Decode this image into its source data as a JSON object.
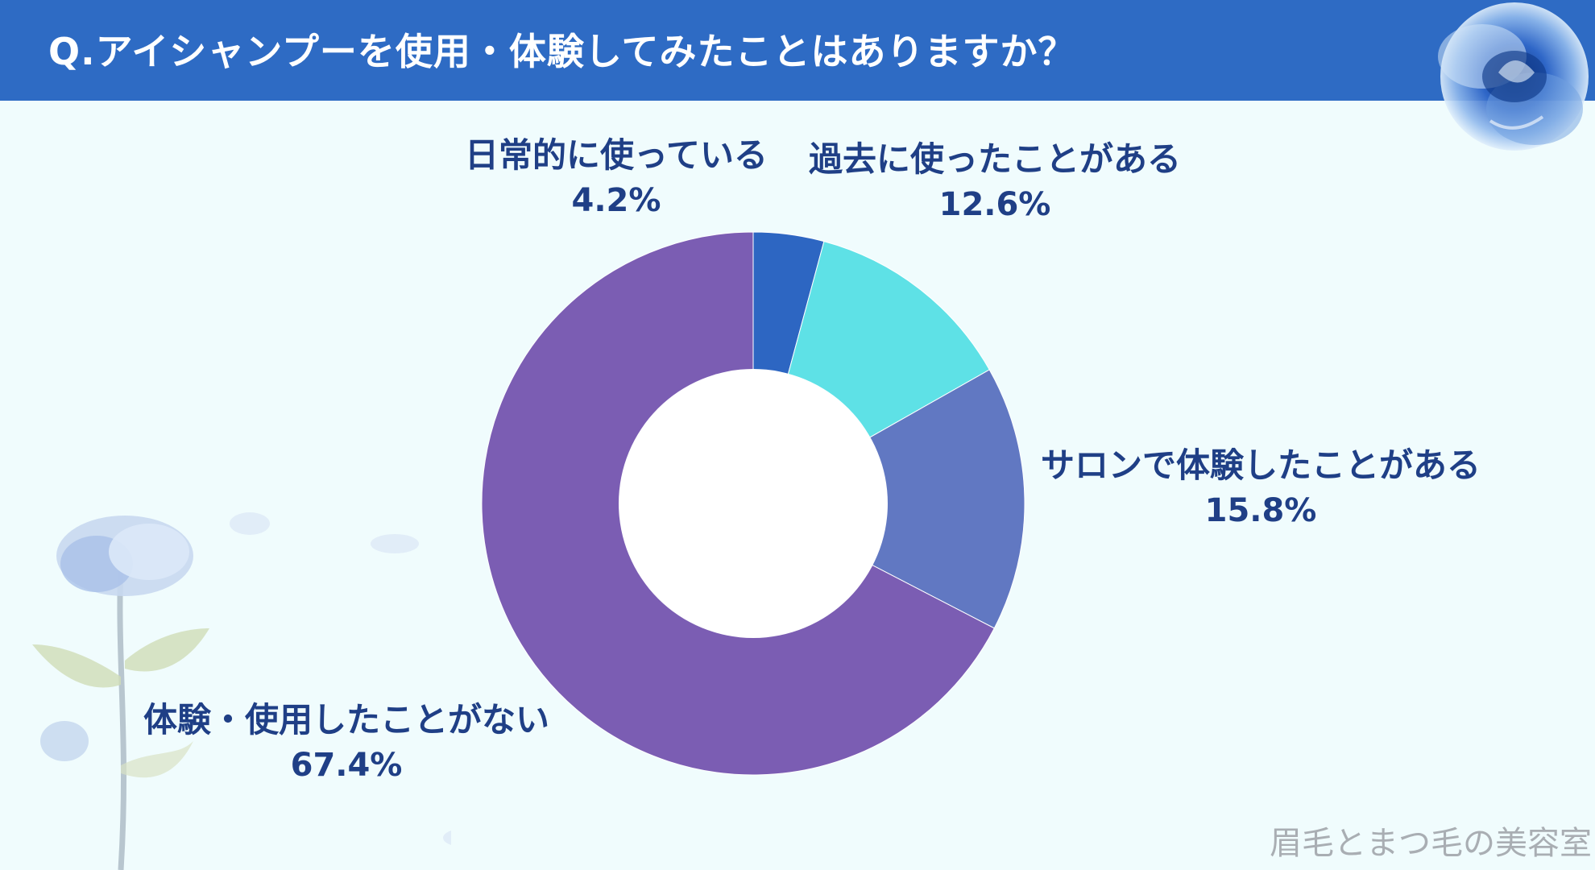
{
  "header": {
    "title": "Q.アイシャンプーを使用・体験してみたことはありますか？",
    "background_color": "#2e6bc4"
  },
  "chart_data": {
    "type": "pie",
    "donut": true,
    "slices": [
      {
        "label": "日常的に使っている",
        "value": 4.2,
        "display": "4.2%",
        "color": "#2d66c2"
      },
      {
        "label": "過去に使ったことがある",
        "value": 12.6,
        "display": "12.6%",
        "color": "#5ee1e6"
      },
      {
        "label": "サロンで体験したことがある",
        "value": 15.8,
        "display": "15.8%",
        "color": "#6178c2"
      },
      {
        "label": "体験・使用したことがない",
        "value": 67.4,
        "display": "67.4%",
        "color": "#7b5db3"
      }
    ],
    "label_color": "#1f3f86",
    "start_angle_deg": 0,
    "direction": "clockwise"
  },
  "watermark": "眉毛とまつ毛の美容室",
  "decorations": {
    "top_right_icon": "blue-rose-icon",
    "bottom_left_icon": "blue-flower-stem-icon"
  }
}
